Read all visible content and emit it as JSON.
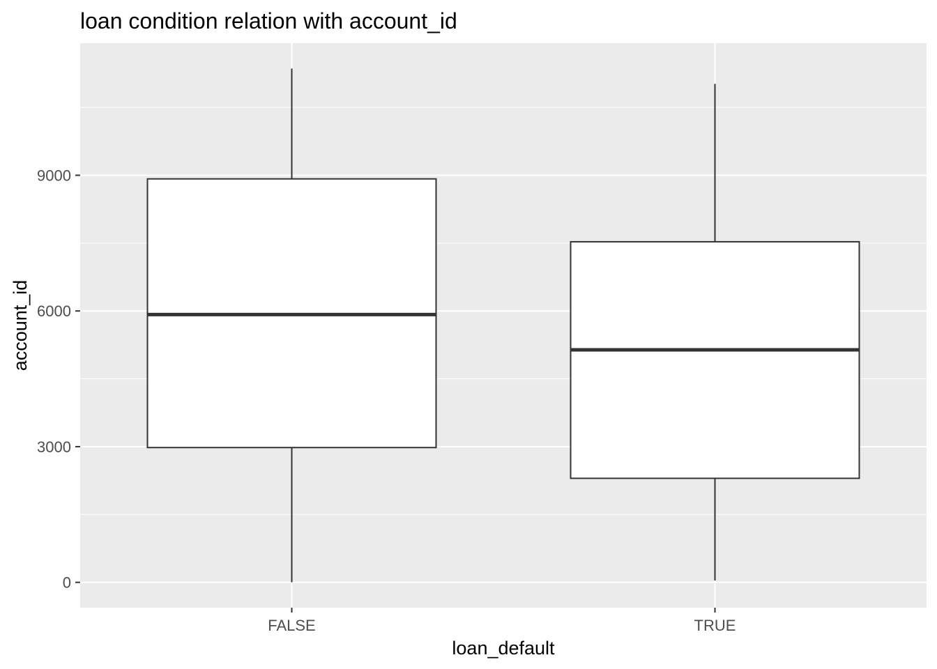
{
  "chart_data": {
    "type": "boxplot",
    "title": "loan condition relation with account_id",
    "xlabel": "loan_default",
    "ylabel": "account_id",
    "categories": [
      "FALSE",
      "TRUE"
    ],
    "boxes": [
      {
        "category": "FALSE",
        "min": 2,
        "q1": 2980,
        "median": 5920,
        "q3": 8920,
        "max": 11360
      },
      {
        "category": "TRUE",
        "min": 40,
        "q1": 2300,
        "median": 5140,
        "q3": 7530,
        "max": 11020
      }
    ],
    "y_ticks": [
      0,
      3000,
      6000,
      9000
    ],
    "y_tick_labels": [
      "0",
      "3000",
      "6000",
      "9000"
    ],
    "ylim": [
      -560,
      11920
    ],
    "panel_background": "#ebebeb",
    "grid_color": "#ffffff",
    "box_fill": "#ffffff",
    "line_color": "#333333",
    "grid": true,
    "legend": "none"
  }
}
